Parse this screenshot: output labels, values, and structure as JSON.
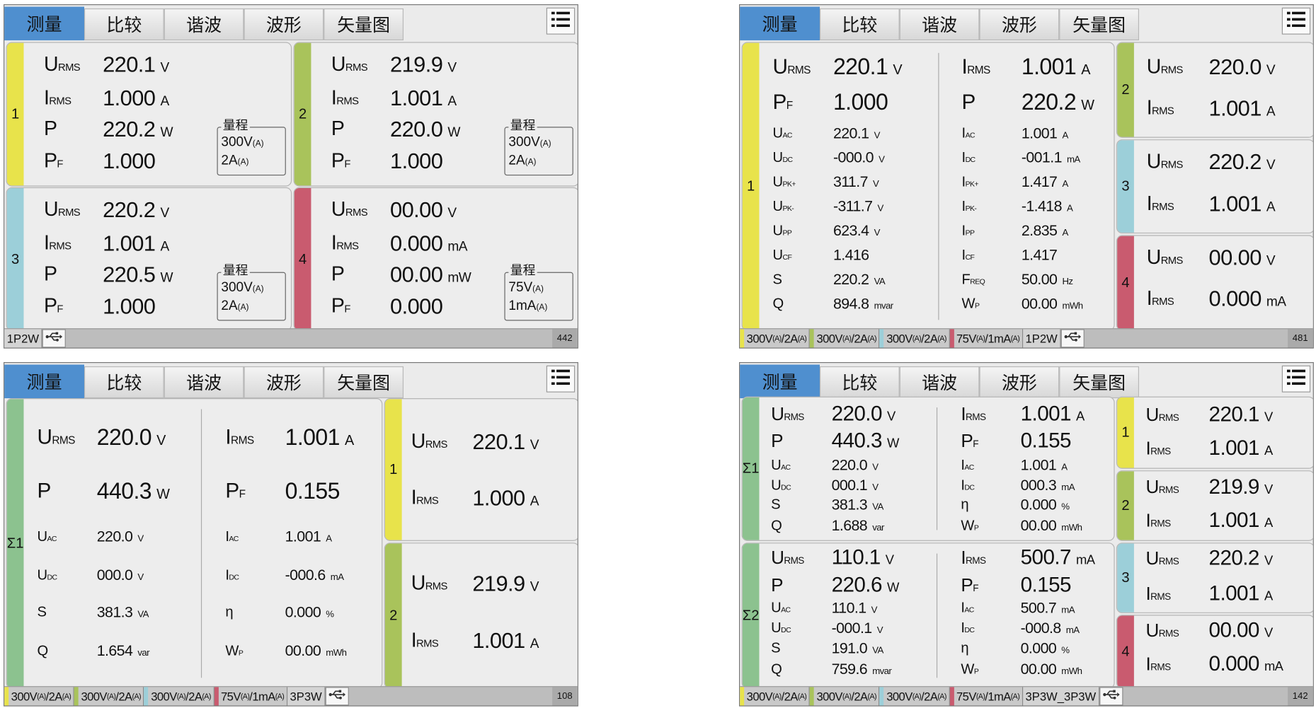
{
  "tabs": [
    "测量",
    "比较",
    "谐波",
    "波形",
    "矢量图"
  ],
  "active_tab": "测量",
  "range_legend": "量程",
  "colors": {
    "ch1": "#e8e34b",
    "ch2": "#a9c35b",
    "ch3": "#9ccfd9",
    "ch4": "#c95b6f",
    "sigma": "#8cc28f",
    "active_tab": "#4f8fcf"
  },
  "screens": [
    {
      "panels": [
        {
          "channel": "1",
          "color": "#e8e34b",
          "columns": [
            [
              {
                "label": "U",
                "sub": "RMS",
                "value": "220.1",
                "unit": "V"
              },
              {
                "label": "I",
                "sub": "RMS",
                "value": "1.000",
                "unit": "A"
              },
              {
                "label": "P",
                "sub": "",
                "value": "220.2",
                "unit": "W"
              },
              {
                "label": "P",
                "sub": "F",
                "value": "1.000",
                "unit": ""
              }
            ]
          ],
          "range": {
            "v": "300V",
            "vsub": "(A)",
            "i": "2A",
            "isub": "(A)"
          }
        },
        {
          "channel": "2",
          "color": "#a9c35b",
          "columns": [
            [
              {
                "label": "U",
                "sub": "RMS",
                "value": "219.9",
                "unit": "V"
              },
              {
                "label": "I",
                "sub": "RMS",
                "value": "1.001",
                "unit": "A"
              },
              {
                "label": "P",
                "sub": "",
                "value": "220.0",
                "unit": "W"
              },
              {
                "label": "P",
                "sub": "F",
                "value": "1.000",
                "unit": ""
              }
            ]
          ],
          "range": {
            "v": "300V",
            "vsub": "(A)",
            "i": "2A",
            "isub": "(A)"
          }
        },
        {
          "channel": "3",
          "color": "#9ccfd9",
          "columns": [
            [
              {
                "label": "U",
                "sub": "RMS",
                "value": "220.2",
                "unit": "V"
              },
              {
                "label": "I",
                "sub": "RMS",
                "value": "1.001",
                "unit": "A"
              },
              {
                "label": "P",
                "sub": "",
                "value": "220.5",
                "unit": "W"
              },
              {
                "label": "P",
                "sub": "F",
                "value": "1.000",
                "unit": ""
              }
            ]
          ],
          "range": {
            "v": "300V",
            "vsub": "(A)",
            "i": "2A",
            "isub": "(A)"
          }
        },
        {
          "channel": "4",
          "color": "#c95b6f",
          "columns": [
            [
              {
                "label": "U",
                "sub": "RMS",
                "value": "00.00",
                "unit": "V"
              },
              {
                "label": "I",
                "sub": "RMS",
                "value": "0.000",
                "unit": "mA"
              },
              {
                "label": "P",
                "sub": "",
                "value": "00.00",
                "unit": "mW"
              },
              {
                "label": "P",
                "sub": "F",
                "value": "0.000",
                "unit": ""
              }
            ]
          ],
          "range": {
            "v": "75V",
            "vsub": "(A)",
            "i": "1mA",
            "isub": "(A)"
          }
        }
      ],
      "status": {
        "segments": [],
        "wiring": "1P2W",
        "counter": "442"
      }
    },
    {
      "panels": [
        {
          "channel": "1",
          "color": "#e8e34b",
          "columns": [
            [
              {
                "label": "U",
                "sub": "RMS",
                "value": "220.1",
                "unit": "V"
              },
              {
                "label": "P",
                "sub": "F",
                "value": "1.000",
                "unit": ""
              },
              {
                "label": "U",
                "sub": "AC",
                "value": "220.1",
                "unit": "V"
              },
              {
                "label": "U",
                "sub": "DC",
                "value": "-000.0",
                "unit": "V"
              },
              {
                "label": "U",
                "sub": "PK+",
                "value": "311.7",
                "unit": "V"
              },
              {
                "label": "U",
                "sub": "PK-",
                "value": "-311.7",
                "unit": "V"
              },
              {
                "label": "U",
                "sub": "PP",
                "value": "623.4",
                "unit": "V"
              },
              {
                "label": "U",
                "sub": "CF",
                "value": "1.416",
                "unit": ""
              },
              {
                "label": "S",
                "sub": "",
                "value": "220.2",
                "unit": "VA"
              },
              {
                "label": "Q",
                "sub": "",
                "value": "894.8",
                "unit": "mvar"
              }
            ],
            [
              {
                "label": "I",
                "sub": "RMS",
                "value": "1.001",
                "unit": "A"
              },
              {
                "label": "P",
                "sub": "",
                "value": "220.2",
                "unit": "W"
              },
              {
                "label": "I",
                "sub": "AC",
                "value": "1.001",
                "unit": "A"
              },
              {
                "label": "I",
                "sub": "DC",
                "value": "-001.1",
                "unit": "mA"
              },
              {
                "label": "I",
                "sub": "PK+",
                "value": "1.417",
                "unit": "A"
              },
              {
                "label": "I",
                "sub": "PK-",
                "value": "-1.418",
                "unit": "A"
              },
              {
                "label": "I",
                "sub": "PP",
                "value": "2.835",
                "unit": "A"
              },
              {
                "label": "I",
                "sub": "CF",
                "value": "1.417",
                "unit": ""
              },
              {
                "label": "F",
                "sub": "REQ",
                "value": "50.00",
                "unit": "Hz"
              },
              {
                "label": "W",
                "sub": "P",
                "value": "00.00",
                "unit": "mWh"
              }
            ]
          ]
        },
        {
          "channel": "2",
          "color": "#a9c35b",
          "columns": [
            [
              {
                "label": "U",
                "sub": "RMS",
                "value": "220.0",
                "unit": "V"
              },
              {
                "label": "I",
                "sub": "RMS",
                "value": "1.001",
                "unit": "A"
              }
            ]
          ]
        },
        {
          "channel": "3",
          "color": "#9ccfd9",
          "columns": [
            [
              {
                "label": "U",
                "sub": "RMS",
                "value": "220.2",
                "unit": "V"
              },
              {
                "label": "I",
                "sub": "RMS",
                "value": "1.001",
                "unit": "A"
              }
            ]
          ]
        },
        {
          "channel": "4",
          "color": "#c95b6f",
          "columns": [
            [
              {
                "label": "U",
                "sub": "RMS",
                "value": "00.00",
                "unit": "V"
              },
              {
                "label": "I",
                "sub": "RMS",
                "value": "0.000",
                "unit": "mA"
              }
            ]
          ]
        }
      ],
      "status": {
        "segments": [
          {
            "color": "#e8e34b",
            "v": "300V",
            "vsub": "(A)",
            "i": "/2A",
            "isub": "(A)"
          },
          {
            "color": "#a9c35b",
            "v": "300V",
            "vsub": "(A)",
            "i": "/2A",
            "isub": "(A)"
          },
          {
            "color": "#9ccfd9",
            "v": "300V",
            "vsub": "(A)",
            "i": "/2A",
            "isub": "(A)"
          },
          {
            "color": "#c95b6f",
            "v": "75V",
            "vsub": "(A)",
            "i": "/1mA",
            "isub": "(A)"
          }
        ],
        "wiring": "1P2W",
        "counter": "481"
      }
    },
    {
      "panels": [
        {
          "channel": "Σ1",
          "color": "#8cc28f",
          "columns": [
            [
              {
                "label": "U",
                "sub": "RMS",
                "value": "220.0",
                "unit": "V"
              },
              {
                "label": "P",
                "sub": "",
                "value": "440.3",
                "unit": "W"
              },
              {
                "label": "U",
                "sub": "AC",
                "value": "220.0",
                "unit": "V"
              },
              {
                "label": "U",
                "sub": "DC",
                "value": "000.0",
                "unit": "V"
              },
              {
                "label": "S",
                "sub": "",
                "value": "381.3",
                "unit": "VA"
              },
              {
                "label": "Q",
                "sub": "",
                "value": "1.654",
                "unit": "var"
              }
            ],
            [
              {
                "label": "I",
                "sub": "RMS",
                "value": "1.001",
                "unit": "A"
              },
              {
                "label": "P",
                "sub": "F",
                "value": "0.155",
                "unit": ""
              },
              {
                "label": "I",
                "sub": "AC",
                "value": "1.001",
                "unit": "A"
              },
              {
                "label": "I",
                "sub": "DC",
                "value": "-000.6",
                "unit": "mA"
              },
              {
                "label": "η",
                "sub": "",
                "value": "0.000",
                "unit": "%"
              },
              {
                "label": "W",
                "sub": "P",
                "value": "00.00",
                "unit": "mWh"
              }
            ]
          ]
        },
        {
          "channel": "1",
          "color": "#e8e34b",
          "columns": [
            [
              {
                "label": "U",
                "sub": "RMS",
                "value": "220.1",
                "unit": "V"
              },
              {
                "label": "I",
                "sub": "RMS",
                "value": "1.000",
                "unit": "A"
              }
            ]
          ]
        },
        {
          "channel": "2",
          "color": "#a9c35b",
          "columns": [
            [
              {
                "label": "U",
                "sub": "RMS",
                "value": "219.9",
                "unit": "V"
              },
              {
                "label": "I",
                "sub": "RMS",
                "value": "1.001",
                "unit": "A"
              }
            ]
          ]
        }
      ],
      "status": {
        "segments": [
          {
            "color": "#e8e34b",
            "v": "300V",
            "vsub": "(A)",
            "i": "/2A",
            "isub": "(A)"
          },
          {
            "color": "#a9c35b",
            "v": "300V",
            "vsub": "(A)",
            "i": "/2A",
            "isub": "(A)"
          },
          {
            "color": "#9ccfd9",
            "v": "300V",
            "vsub": "(A)",
            "i": "/2A",
            "isub": "(A)"
          },
          {
            "color": "#c95b6f",
            "v": "75V",
            "vsub": "(A)",
            "i": "/1mA",
            "isub": "(A)"
          }
        ],
        "wiring": "3P3W",
        "counter": "108"
      }
    },
    {
      "panels": [
        {
          "channel": "Σ1",
          "color": "#8cc28f",
          "columns": [
            [
              {
                "label": "U",
                "sub": "RMS",
                "value": "220.0",
                "unit": "V"
              },
              {
                "label": "P",
                "sub": "",
                "value": "440.3",
                "unit": "W"
              },
              {
                "label": "U",
                "sub": "AC",
                "value": "220.0",
                "unit": "V"
              },
              {
                "label": "U",
                "sub": "DC",
                "value": "000.1",
                "unit": "V"
              },
              {
                "label": "S",
                "sub": "",
                "value": "381.3",
                "unit": "VA"
              },
              {
                "label": "Q",
                "sub": "",
                "value": "1.688",
                "unit": "var"
              }
            ],
            [
              {
                "label": "I",
                "sub": "RMS",
                "value": "1.001",
                "unit": "A"
              },
              {
                "label": "P",
                "sub": "F",
                "value": "0.155",
                "unit": ""
              },
              {
                "label": "I",
                "sub": "AC",
                "value": "1.001",
                "unit": "A"
              },
              {
                "label": "I",
                "sub": "DC",
                "value": "000.3",
                "unit": "mA"
              },
              {
                "label": "η",
                "sub": "",
                "value": "0.000",
                "unit": "%"
              },
              {
                "label": "W",
                "sub": "P",
                "value": "00.00",
                "unit": "mWh"
              }
            ]
          ]
        },
        {
          "channel": "Σ2",
          "color": "#8cc28f",
          "columns": [
            [
              {
                "label": "U",
                "sub": "RMS",
                "value": "110.1",
                "unit": "V"
              },
              {
                "label": "P",
                "sub": "",
                "value": "220.6",
                "unit": "W"
              },
              {
                "label": "U",
                "sub": "AC",
                "value": "110.1",
                "unit": "V"
              },
              {
                "label": "U",
                "sub": "DC",
                "value": "-000.1",
                "unit": "V"
              },
              {
                "label": "S",
                "sub": "",
                "value": "191.0",
                "unit": "VA"
              },
              {
                "label": "Q",
                "sub": "",
                "value": "759.6",
                "unit": "mvar"
              }
            ],
            [
              {
                "label": "I",
                "sub": "RMS",
                "value": "500.7",
                "unit": "mA"
              },
              {
                "label": "P",
                "sub": "F",
                "value": "0.155",
                "unit": ""
              },
              {
                "label": "I",
                "sub": "AC",
                "value": "500.7",
                "unit": "mA"
              },
              {
                "label": "I",
                "sub": "DC",
                "value": "-000.8",
                "unit": "mA"
              },
              {
                "label": "η",
                "sub": "",
                "value": "0.000",
                "unit": "%"
              },
              {
                "label": "W",
                "sub": "P",
                "value": "00.00",
                "unit": "mWh"
              }
            ]
          ]
        },
        {
          "channel": "1",
          "color": "#e8e34b",
          "columns": [
            [
              {
                "label": "U",
                "sub": "RMS",
                "value": "220.1",
                "unit": "V"
              },
              {
                "label": "I",
                "sub": "RMS",
                "value": "1.001",
                "unit": "A"
              }
            ]
          ]
        },
        {
          "channel": "2",
          "color": "#a9c35b",
          "columns": [
            [
              {
                "label": "U",
                "sub": "RMS",
                "value": "219.9",
                "unit": "V"
              },
              {
                "label": "I",
                "sub": "RMS",
                "value": "1.001",
                "unit": "A"
              }
            ]
          ]
        },
        {
          "channel": "3",
          "color": "#9ccfd9",
          "columns": [
            [
              {
                "label": "U",
                "sub": "RMS",
                "value": "220.2",
                "unit": "V"
              },
              {
                "label": "I",
                "sub": "RMS",
                "value": "1.001",
                "unit": "A"
              }
            ]
          ]
        },
        {
          "channel": "4",
          "color": "#c95b6f",
          "columns": [
            [
              {
                "label": "U",
                "sub": "RMS",
                "value": "00.00",
                "unit": "V"
              },
              {
                "label": "I",
                "sub": "RMS",
                "value": "0.000",
                "unit": "mA"
              }
            ]
          ]
        }
      ],
      "status": {
        "segments": [
          {
            "color": "#e8e34b",
            "v": "300V",
            "vsub": "(A)",
            "i": "/2A",
            "isub": "(A)"
          },
          {
            "color": "#a9c35b",
            "v": "300V",
            "vsub": "(A)",
            "i": "/2A",
            "isub": "(A)"
          },
          {
            "color": "#9ccfd9",
            "v": "300V",
            "vsub": "(A)",
            "i": "/2A",
            "isub": "(A)"
          },
          {
            "color": "#c95b6f",
            "v": "75V",
            "vsub": "(A)",
            "i": "/1mA",
            "isub": "(A)"
          }
        ],
        "wiring": "3P3W_3P3W",
        "counter": "142"
      }
    }
  ]
}
